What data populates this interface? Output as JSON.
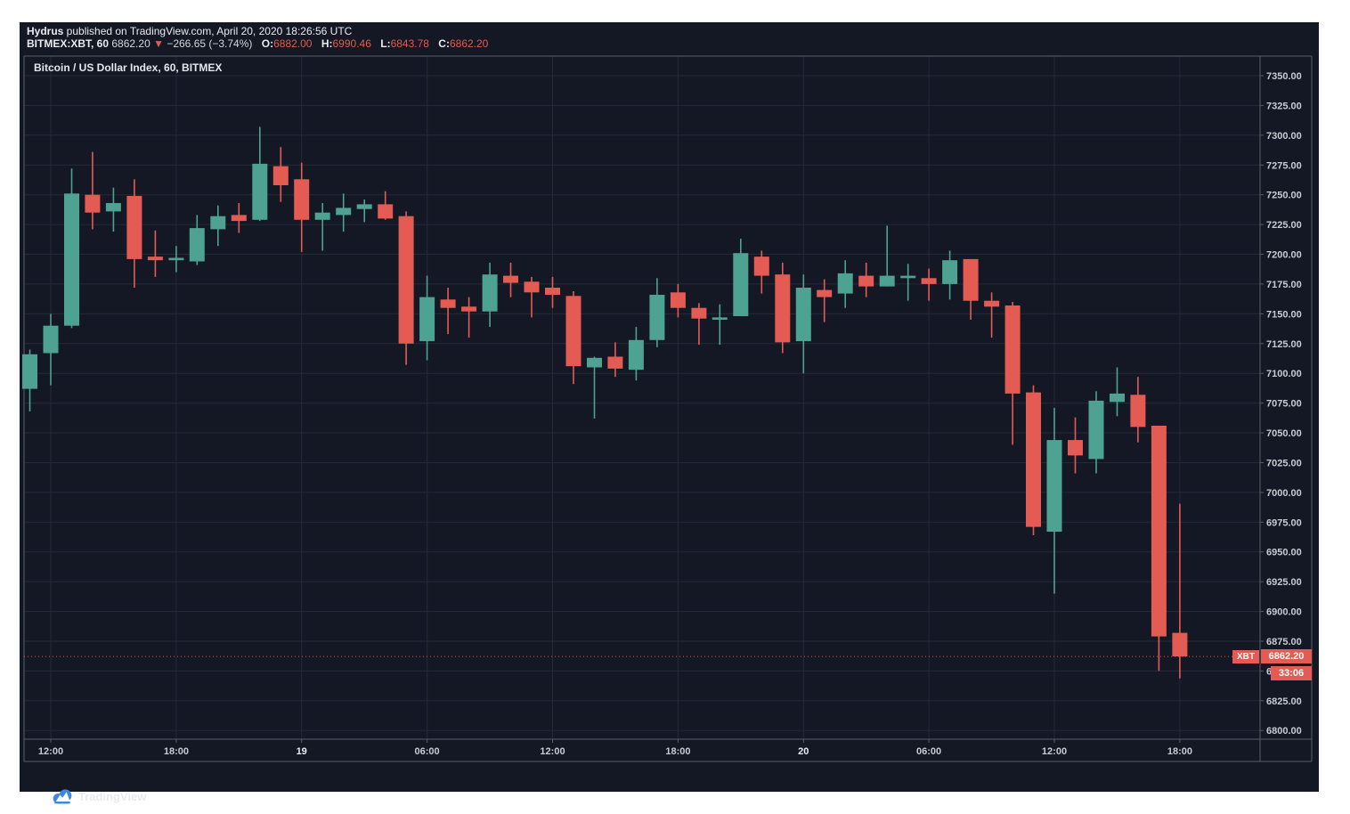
{
  "header": {
    "line1": {
      "user": "Hydrus",
      "rest": " published on TradingView.com, April 20, 2020 18:26:56 UTC"
    },
    "line2": {
      "symbol": "BITMEX:XBT, 60",
      "last": "6862.20",
      "arrow": "▼",
      "change": "−266.65 (−3.74%)",
      "ohlc": [
        {
          "label": "O:",
          "value": "6882.00"
        },
        {
          "label": "H:",
          "value": "6990.46"
        },
        {
          "label": "L:",
          "value": "6843.78"
        },
        {
          "label": "C:",
          "value": "6862.20"
        }
      ]
    }
  },
  "price_label": {
    "symbol": "XBT",
    "price": "6862.20",
    "countdown": "33:06"
  },
  "footer": {
    "logo_text": "TradingView"
  },
  "colors": {
    "background": "#141824",
    "grid": "#232a38",
    "frame": "#5a5e66",
    "candle_up": "#4da291",
    "candle_down": "#e45b54",
    "axis_text": "#c7cbd4",
    "accent_red": "#e45b54",
    "logo_blue": "#3f87dd"
  },
  "chart_data": {
    "type": "candlestick",
    "title": "Bitcoin / US Dollar Index, 60, BITMEX",
    "symbol": "BITMEX:XBT",
    "interval": "60",
    "exchange": "BITMEX",
    "y_axis": {
      "min": 6800,
      "max": 7350,
      "step": 25,
      "format": "0.00"
    },
    "x_ticks": [
      {
        "index": 1,
        "label": "12:00"
      },
      {
        "index": 7,
        "label": "18:00"
      },
      {
        "index": 13,
        "label": "19",
        "day": true
      },
      {
        "index": 19,
        "label": "06:00"
      },
      {
        "index": 25,
        "label": "12:00"
      },
      {
        "index": 31,
        "label": "18:00"
      },
      {
        "index": 37,
        "label": "20",
        "day": true
      },
      {
        "index": 43,
        "label": "06:00"
      },
      {
        "index": 49,
        "label": "12:00"
      },
      {
        "index": 55,
        "label": "18:00"
      }
    ],
    "current_price": 6862.2,
    "countdown": "33:06",
    "candle_fields": [
      "time",
      "open",
      "high",
      "low",
      "close"
    ],
    "candles": [
      [
        "Apr 18 11:00",
        7087,
        7120,
        7068,
        7116
      ],
      [
        "Apr 18 12:00",
        7117,
        7150,
        7090,
        7140
      ],
      [
        "Apr 18 13:00",
        7140,
        7272,
        7138,
        7251
      ],
      [
        "Apr 18 14:00",
        7250,
        7286,
        7221,
        7235
      ],
      [
        "Apr 18 15:00",
        7236,
        7256,
        7219,
        7243
      ],
      [
        "Apr 18 16:00",
        7249,
        7263,
        7172,
        7196
      ],
      [
        "Apr 18 17:00",
        7198,
        7220,
        7181,
        7195
      ],
      [
        "Apr 18 18:00",
        7195,
        7207,
        7185,
        7197
      ],
      [
        "Apr 18 19:00",
        7194,
        7233,
        7191,
        7222
      ],
      [
        "Apr 18 20:00",
        7221,
        7241,
        7207,
        7232
      ],
      [
        "Apr 18 21:00",
        7233,
        7243,
        7218,
        7228
      ],
      [
        "Apr 18 22:00",
        7229,
        7307,
        7228,
        7276
      ],
      [
        "Apr 18 23:00",
        7274,
        7290,
        7244,
        7258
      ],
      [
        "Apr 19 00:00",
        7263,
        7277,
        7202,
        7229
      ],
      [
        "Apr 19 01:00",
        7229,
        7243,
        7203,
        7235
      ],
      [
        "Apr 19 02:00",
        7233,
        7251,
        7219,
        7239
      ],
      [
        "Apr 19 03:00",
        7238,
        7246,
        7227,
        7242
      ],
      [
        "Apr 19 04:00",
        7242,
        7253,
        7229,
        7230
      ],
      [
        "Apr 19 05:00",
        7232,
        7236,
        7107,
        7125
      ],
      [
        "Apr 19 06:00",
        7127,
        7182,
        7111,
        7164
      ],
      [
        "Apr 19 07:00",
        7162,
        7172,
        7133,
        7155
      ],
      [
        "Apr 19 08:00",
        7156,
        7164,
        7130,
        7152
      ],
      [
        "Apr 19 09:00",
        7152,
        7193,
        7139,
        7183
      ],
      [
        "Apr 19 10:00",
        7182,
        7193,
        7164,
        7176
      ],
      [
        "Apr 19 11:00",
        7177,
        7181,
        7147,
        7168
      ],
      [
        "Apr 19 12:00",
        7172,
        7181,
        7155,
        7166
      ],
      [
        "Apr 19 13:00",
        7165,
        7169,
        7091,
        7106
      ],
      [
        "Apr 19 14:00",
        7105,
        7114,
        7062,
        7113
      ],
      [
        "Apr 19 15:00",
        7114,
        7126,
        7097,
        7104
      ],
      [
        "Apr 19 16:00",
        7103,
        7139,
        7094,
        7128
      ],
      [
        "Apr 19 17:00",
        7128,
        7180,
        7122,
        7166
      ],
      [
        "Apr 19 18:00",
        7168,
        7175,
        7147,
        7155
      ],
      [
        "Apr 19 19:00",
        7155,
        7159,
        7124,
        7146
      ],
      [
        "Apr 19 20:00",
        7145,
        7158,
        7124,
        7147
      ],
      [
        "Apr 19 21:00",
        7148,
        7213,
        7148,
        7201
      ],
      [
        "Apr 19 22:00",
        7198,
        7203,
        7167,
        7182
      ],
      [
        "Apr 19 23:00",
        7183,
        7193,
        7117,
        7126
      ],
      [
        "Apr 20 00:00",
        7127,
        7183,
        7100,
        7172
      ],
      [
        "Apr 20 01:00",
        7170,
        7179,
        7143,
        7164
      ],
      [
        "Apr 20 02:00",
        7167,
        7195,
        7155,
        7184
      ],
      [
        "Apr 20 03:00",
        7182,
        7193,
        7164,
        7173
      ],
      [
        "Apr 20 04:00",
        7173,
        7224,
        7173,
        7182
      ],
      [
        "Apr 20 05:00",
        7180,
        7192,
        7161,
        7182
      ],
      [
        "Apr 20 06:00",
        7180,
        7188,
        7161,
        7175
      ],
      [
        "Apr 20 07:00",
        7175,
        7203,
        7162,
        7195
      ],
      [
        "Apr 20 08:00",
        7196,
        7196,
        7145,
        7161
      ],
      [
        "Apr 20 09:00",
        7161,
        7168,
        7130,
        7156
      ],
      [
        "Apr 20 10:00",
        7157,
        7160,
        7040,
        7083
      ],
      [
        "Apr 20 11:00",
        7084,
        7090,
        6964,
        6971
      ],
      [
        "Apr 20 12:00",
        6967,
        7071,
        6915,
        7044
      ],
      [
        "Apr 20 13:00",
        7044,
        7063,
        7016,
        7031
      ],
      [
        "Apr 20 14:00",
        7028,
        7085,
        7016,
        7077
      ],
      [
        "Apr 20 15:00",
        7076,
        7105,
        7064,
        7083
      ],
      [
        "Apr 20 16:00",
        7082,
        7097,
        7042,
        7055
      ],
      [
        "Apr 20 17:00",
        7056,
        7056,
        6850,
        6879
      ],
      [
        "Apr 20 18:00",
        6882,
        6990.46,
        6843.78,
        6862.2
      ]
    ]
  }
}
